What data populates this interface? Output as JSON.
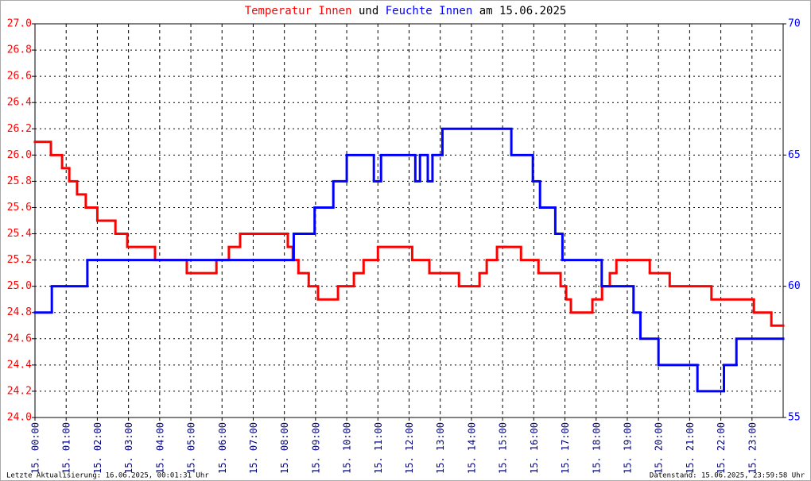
{
  "chart_data": {
    "type": "line",
    "step": "post",
    "title": [
      {
        "text": "Temperatur Innen",
        "color": "#ff0000"
      },
      {
        "text": "und",
        "color": "#000000"
      },
      {
        "text": "Feuchte Innen",
        "color": "#0000ff"
      },
      {
        "text": "am 15.06.2025",
        "color": "#000000"
      }
    ],
    "footer_left": "Letzte Aktualisierung: 16.06.2025, 00:01:31 Uhr",
    "footer_right": "Datenstand: 15.06.2025, 23:59:58 Uhr",
    "grid": true,
    "xlim": [
      0,
      24
    ],
    "xticks": [
      {
        "value": 0,
        "label": "15. 00:00"
      },
      {
        "value": 1,
        "label": "15. 01:00"
      },
      {
        "value": 2,
        "label": "15. 02:00"
      },
      {
        "value": 3,
        "label": "15. 03:00"
      },
      {
        "value": 4,
        "label": "15. 04:00"
      },
      {
        "value": 5,
        "label": "15. 05:00"
      },
      {
        "value": 6,
        "label": "15. 06:00"
      },
      {
        "value": 7,
        "label": "15. 07:00"
      },
      {
        "value": 8,
        "label": "15. 08:00"
      },
      {
        "value": 9,
        "label": "15. 09:00"
      },
      {
        "value": 10,
        "label": "15. 10:00"
      },
      {
        "value": 11,
        "label": "15. 11:00"
      },
      {
        "value": 12,
        "label": "15. 12:00"
      },
      {
        "value": 13,
        "label": "15. 13:00"
      },
      {
        "value": 14,
        "label": "15. 14:00"
      },
      {
        "value": 15,
        "label": "15. 15:00"
      },
      {
        "value": 16,
        "label": "15. 16:00"
      },
      {
        "value": 17,
        "label": "15. 17:00"
      },
      {
        "value": 18,
        "label": "15. 18:00"
      },
      {
        "value": 19,
        "label": "15. 19:00"
      },
      {
        "value": 20,
        "label": "15. 20:00"
      },
      {
        "value": 21,
        "label": "15. 21:00"
      },
      {
        "value": 22,
        "label": "15. 22:00"
      },
      {
        "value": 23,
        "label": "15. 23:00"
      }
    ],
    "ylim": [
      24.0,
      27.0
    ],
    "yticks": [
      {
        "value": 24,
        "label": "24.0"
      },
      24.2,
      24.4,
      24.6,
      24.8,
      {
        "value": 25,
        "label": "25.0"
      },
      25.2,
      25.4,
      25.6,
      25.8,
      {
        "value": 26,
        "label": "26.0"
      },
      26.2,
      26.4,
      26.6,
      26.8,
      {
        "value": 27,
        "label": "27.0"
      }
    ],
    "y2lim": [
      55,
      70
    ],
    "y2ticks": [
      55,
      60,
      65,
      70
    ],
    "series": [
      {
        "name": "Temperatur Innen",
        "color": "#ff0000",
        "x": [
          0,
          0.51,
          0.87,
          1.1,
          1.35,
          1.63,
          2.0,
          2.58,
          2.96,
          3.85,
          4.87,
          5.82,
          6.22,
          6.58,
          8.11,
          8.27,
          8.45,
          8.78,
          9.08,
          9.72,
          10.23,
          10.54,
          11.0,
          12.1,
          12.65,
          13.6,
          14.26,
          14.49,
          14.82,
          15.08,
          15.59,
          16.15,
          16.86,
          17.04,
          17.19,
          17.88,
          18.19,
          18.44,
          18.65,
          19.72,
          20.36,
          21.7,
          23.06,
          23.62,
          24
        ],
        "values": [
          26.1,
          26.0,
          25.9,
          25.8,
          25.7,
          25.6,
          25.5,
          25.4,
          25.3,
          25.2,
          25.1,
          25.2,
          25.3,
          25.4,
          25.3,
          25.2,
          25.1,
          25.0,
          24.9,
          25.0,
          25.1,
          25.2,
          25.3,
          25.2,
          25.1,
          25.0,
          25.1,
          25.2,
          25.3,
          25.3,
          25.2,
          25.1,
          25.0,
          24.9,
          24.8,
          24.9,
          25.0,
          25.1,
          25.2,
          25.1,
          25.0,
          24.9,
          24.8,
          24.7,
          24.7
        ]
      },
      {
        "name": "Feuchte Innen",
        "color": "#0000ff",
        "axis": "y2",
        "x": [
          0,
          0.54,
          1.68,
          8.3,
          8.97,
          9.57,
          10.0,
          10.87,
          11.1,
          12.2,
          12.35,
          12.6,
          12.75,
          13.07,
          15.28,
          15.97,
          16.2,
          16.69,
          16.92,
          18.18,
          19.2,
          19.42,
          20.0,
          21.25,
          22.1,
          22.5,
          24
        ],
        "values": [
          59,
          60,
          61,
          62,
          63,
          64,
          65,
          64,
          65,
          64,
          65,
          64,
          65,
          66,
          65,
          64,
          63,
          62,
          61,
          60,
          59,
          58,
          57,
          56,
          57,
          58,
          58
        ]
      }
    ]
  }
}
